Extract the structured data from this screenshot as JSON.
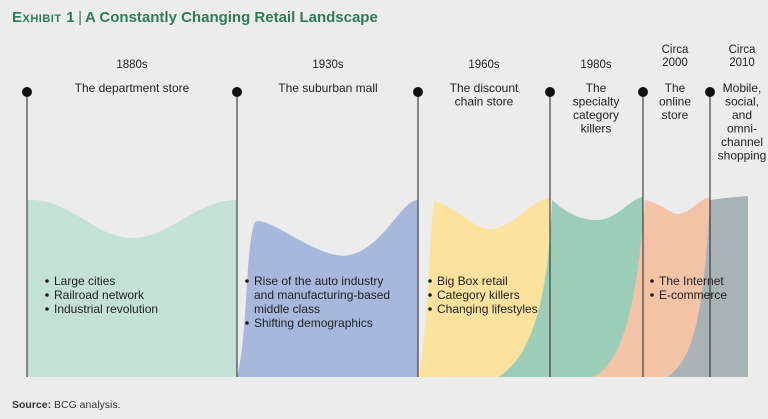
{
  "header": {
    "exhibit": "Exhibit 1",
    "title": "A Constantly Changing Retail Landscape"
  },
  "source": {
    "label": "Source:",
    "text": "BCG analysis."
  },
  "colors": {
    "title": "#2e7d55",
    "eras": [
      "#c4e1d6",
      "#a7b8dd",
      "#fbe39e",
      "#9ccdb8",
      "#f3c3a8",
      "#a8b3b6"
    ]
  },
  "chart_data": {
    "type": "timeline-area",
    "title": "A Constantly Changing Retail Landscape",
    "eras": [
      {
        "date": [
          "1880s"
        ],
        "label": [
          "The department store"
        ],
        "drivers": [
          "Large cities",
          "Railroad network",
          "Industrial revolution"
        ]
      },
      {
        "date": [
          "1930s"
        ],
        "label": [
          "The suburban mall"
        ],
        "drivers": [
          "Rise of the auto industry",
          "and manufacturing-based",
          "middle class",
          "Shifting demographics"
        ]
      },
      {
        "date": [
          "1960s"
        ],
        "label": [
          "The discount",
          "chain store"
        ],
        "drivers": [
          "Big Box retail",
          "Category killers",
          "Changing lifestyles"
        ]
      },
      {
        "date": [
          "1980s"
        ],
        "label": [
          "The",
          "specialty",
          "category",
          "killers"
        ],
        "drivers": []
      },
      {
        "date": [
          "Circa",
          "2000"
        ],
        "label": [
          "The",
          "online",
          "store"
        ],
        "drivers": [
          "The Internet",
          "E-commerce"
        ]
      },
      {
        "date": [
          "Circa",
          "2010"
        ],
        "label": [
          "Mobile,",
          "social,",
          "and",
          "omni-",
          "channel",
          "shopping"
        ],
        "drivers": []
      }
    ]
  }
}
